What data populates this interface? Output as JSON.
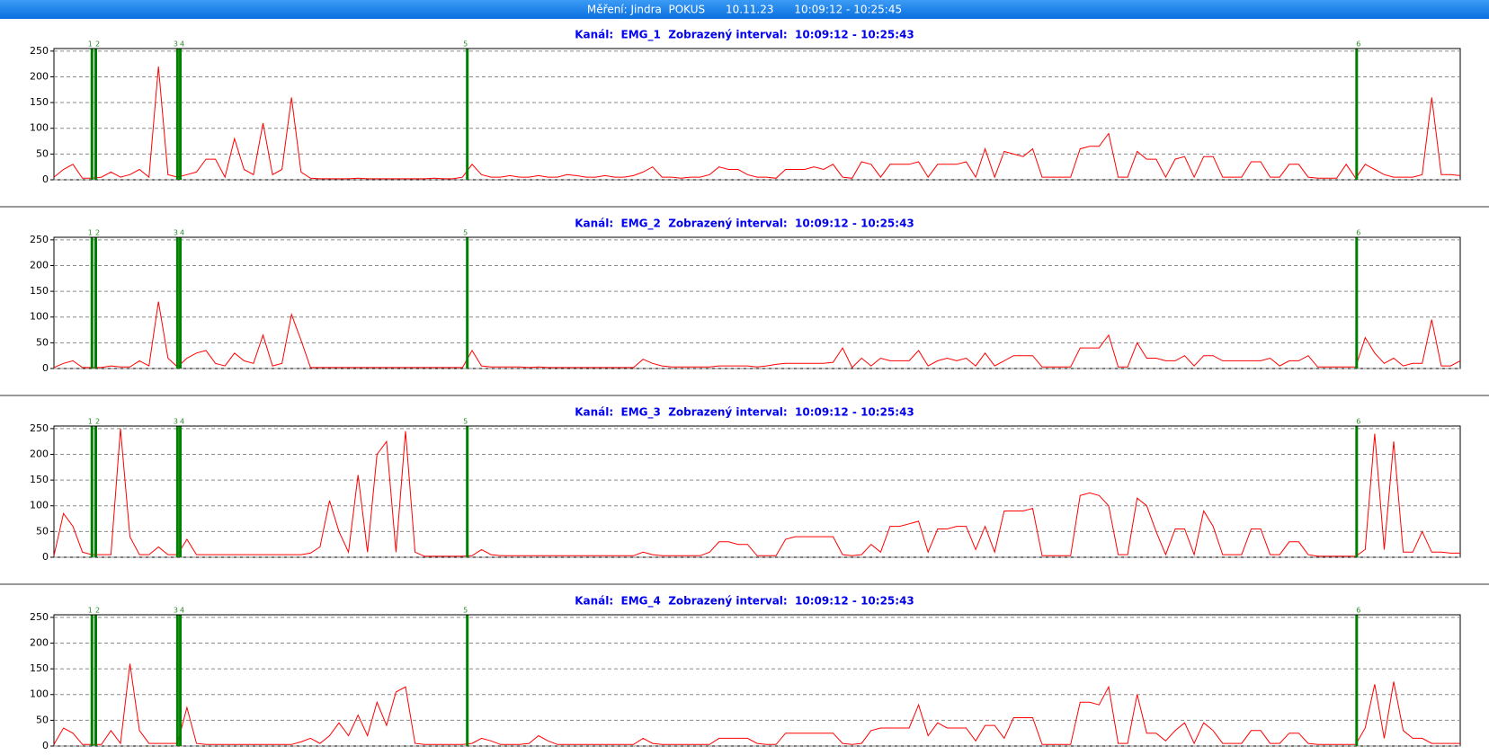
{
  "header": {
    "title": "Měření: Jindra  POKUS      10.11.23      10:09:12 - 10:25:45"
  },
  "chart_data": [
    {
      "type": "line",
      "title": "Kanál:  EMG_1  Zobrazený interval:  10:09:12 - 10:25:43",
      "color": "#ff0000",
      "xlim": [
        0,
        148
      ],
      "ylim": [
        0,
        255
      ],
      "yticks": [
        0,
        50,
        100,
        150,
        200,
        250
      ],
      "grid": true,
      "markers": {
        "labels": [
          "1",
          "2",
          "3",
          "4",
          "5",
          "6"
        ],
        "x": [
          4.0,
          4.4,
          13.0,
          13.3,
          43.5,
          137.1
        ],
        "color": "#008000"
      },
      "values": [
        5,
        20,
        30,
        3,
        3,
        5,
        15,
        5,
        10,
        20,
        5,
        220,
        10,
        5,
        10,
        15,
        40,
        40,
        5,
        80,
        20,
        10,
        110,
        10,
        20,
        160,
        15,
        3,
        2,
        2,
        2,
        2,
        3,
        2,
        2,
        2,
        2,
        2,
        2,
        2,
        3,
        2,
        2,
        5,
        30,
        10,
        5,
        5,
        8,
        5,
        5,
        8,
        5,
        5,
        10,
        8,
        5,
        5,
        8,
        5,
        5,
        8,
        15,
        25,
        5,
        5,
        3,
        5,
        5,
        10,
        25,
        20,
        20,
        10,
        5,
        5,
        3,
        20,
        20,
        20,
        25,
        20,
        30,
        5,
        3,
        35,
        30,
        5,
        30,
        30,
        30,
        35,
        5,
        30,
        30,
        30,
        35,
        5,
        60,
        5,
        55,
        50,
        45,
        60,
        5,
        5,
        5,
        5,
        60,
        65,
        65,
        90,
        5,
        5,
        55,
        40,
        40,
        5,
        40,
        45,
        5,
        45,
        45,
        5,
        5,
        5,
        35,
        35,
        5,
        5,
        30,
        30,
        5,
        3,
        3,
        3,
        30,
        3,
        30,
        20,
        10,
        5,
        5,
        5,
        10,
        160,
        10,
        10,
        8
      ]
    },
    {
      "type": "line",
      "title": "Kanál:  EMG_2  Zobrazený interval:  10:09:12 - 10:25:43",
      "color": "#ff0000",
      "xlim": [
        0,
        148
      ],
      "ylim": [
        0,
        255
      ],
      "yticks": [
        0,
        50,
        100,
        150,
        200,
        250
      ],
      "grid": true,
      "markers": {
        "labels": [
          "1",
          "2",
          "3",
          "4",
          "5",
          "6"
        ],
        "x": [
          4.0,
          4.4,
          13.0,
          13.3,
          43.5,
          137.1
        ],
        "color": "#008000"
      },
      "values": [
        2,
        10,
        15,
        2,
        2,
        2,
        5,
        3,
        3,
        15,
        5,
        130,
        20,
        3,
        20,
        30,
        35,
        10,
        5,
        30,
        15,
        10,
        65,
        5,
        10,
        105,
        55,
        2,
        2,
        2,
        2,
        2,
        2,
        2,
        2,
        2,
        2,
        2,
        2,
        2,
        2,
        2,
        2,
        2,
        35,
        5,
        3,
        3,
        3,
        3,
        2,
        3,
        2,
        2,
        2,
        2,
        2,
        2,
        2,
        2,
        2,
        2,
        18,
        10,
        5,
        3,
        3,
        3,
        3,
        3,
        5,
        5,
        5,
        5,
        3,
        5,
        8,
        10,
        10,
        10,
        10,
        10,
        12,
        40,
        2,
        20,
        5,
        20,
        15,
        15,
        15,
        35,
        5,
        15,
        20,
        15,
        20,
        5,
        30,
        5,
        15,
        25,
        25,
        25,
        3,
        3,
        3,
        3,
        40,
        40,
        40,
        65,
        3,
        3,
        50,
        20,
        20,
        15,
        15,
        25,
        5,
        25,
        25,
        15,
        15,
        15,
        15,
        15,
        20,
        5,
        15,
        15,
        25,
        3,
        3,
        3,
        3,
        3,
        60,
        30,
        10,
        20,
        5,
        10,
        10,
        95,
        5,
        5,
        15
      ]
    },
    {
      "type": "line",
      "title": "Kanál:  EMG_3  Zobrazený interval:  10:09:12 - 10:25:43",
      "color": "#ff0000",
      "xlim": [
        0,
        148
      ],
      "ylim": [
        0,
        255
      ],
      "yticks": [
        0,
        50,
        100,
        150,
        200,
        250
      ],
      "grid": true,
      "markers": {
        "labels": [
          "1",
          "2",
          "3",
          "4",
          "5",
          "6"
        ],
        "x": [
          4.0,
          4.4,
          13.0,
          13.3,
          43.5,
          137.1
        ],
        "color": "#008000"
      },
      "values": [
        3,
        85,
        60,
        10,
        5,
        5,
        5,
        250,
        40,
        5,
        5,
        20,
        5,
        5,
        35,
        5,
        5,
        5,
        5,
        5,
        5,
        5,
        5,
        5,
        5,
        5,
        5,
        8,
        20,
        110,
        50,
        10,
        160,
        10,
        200,
        225,
        10,
        245,
        10,
        2,
        2,
        2,
        2,
        2,
        3,
        15,
        5,
        3,
        3,
        3,
        3,
        3,
        3,
        3,
        3,
        3,
        3,
        3,
        3,
        3,
        3,
        3,
        10,
        5,
        3,
        3,
        3,
        3,
        3,
        10,
        30,
        30,
        25,
        25,
        3,
        3,
        3,
        35,
        40,
        40,
        40,
        40,
        40,
        5,
        3,
        5,
        25,
        10,
        60,
        60,
        65,
        70,
        10,
        55,
        55,
        60,
        60,
        15,
        60,
        10,
        90,
        90,
        90,
        95,
        3,
        3,
        3,
        3,
        120,
        125,
        120,
        100,
        5,
        5,
        115,
        100,
        50,
        5,
        55,
        55,
        5,
        90,
        60,
        5,
        5,
        5,
        55,
        55,
        5,
        5,
        30,
        30,
        5,
        2,
        2,
        2,
        2,
        2,
        15,
        240,
        15,
        225,
        10,
        10,
        50,
        10,
        10,
        8,
        8
      ]
    },
    {
      "type": "line",
      "title": "Kanál:  EMG_4  Zobrazený interval:  10:09:12 - 10:25:43",
      "color": "#ff0000",
      "xlim": [
        0,
        148
      ],
      "ylim": [
        0,
        255
      ],
      "yticks": [
        0,
        50,
        100,
        150,
        200,
        250
      ],
      "grid": true,
      "markers": {
        "labels": [
          "1",
          "2",
          "3",
          "4",
          "5",
          "6"
        ],
        "x": [
          4.0,
          4.4,
          13.0,
          13.3,
          43.5,
          137.1
        ],
        "color": "#008000"
      },
      "values": [
        3,
        35,
        25,
        3,
        3,
        3,
        30,
        5,
        160,
        30,
        5,
        5,
        5,
        5,
        75,
        5,
        3,
        3,
        3,
        3,
        3,
        3,
        3,
        3,
        3,
        3,
        8,
        15,
        5,
        20,
        45,
        20,
        60,
        20,
        85,
        40,
        105,
        115,
        5,
        3,
        3,
        3,
        3,
        3,
        5,
        15,
        10,
        3,
        3,
        3,
        5,
        20,
        10,
        3,
        3,
        3,
        3,
        3,
        3,
        3,
        3,
        3,
        15,
        5,
        3,
        3,
        3,
        3,
        3,
        3,
        15,
        15,
        15,
        15,
        5,
        3,
        3,
        25,
        25,
        25,
        25,
        25,
        25,
        5,
        3,
        5,
        30,
        35,
        35,
        35,
        35,
        80,
        20,
        45,
        35,
        35,
        35,
        10,
        40,
        40,
        15,
        55,
        55,
        55,
        3,
        3,
        3,
        3,
        85,
        85,
        80,
        115,
        5,
        5,
        100,
        25,
        25,
        10,
        30,
        45,
        5,
        45,
        30,
        5,
        5,
        5,
        30,
        30,
        5,
        5,
        25,
        25,
        5,
        3,
        3,
        3,
        3,
        3,
        35,
        120,
        15,
        125,
        30,
        15,
        15,
        5,
        5,
        5,
        5
      ]
    }
  ]
}
